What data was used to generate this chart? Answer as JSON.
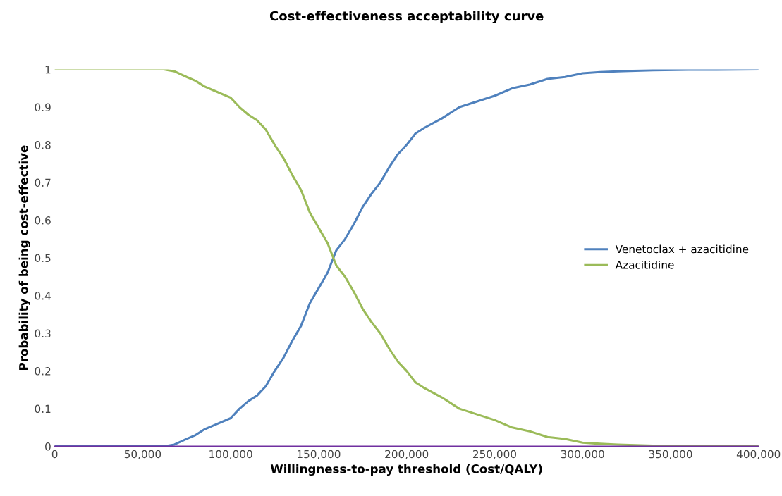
{
  "chart_data": {
    "type": "line",
    "title": "Cost-effectiveness acceptability curve",
    "xlabel": "Willingness-to-pay threshold (Cost/QALY)",
    "ylabel": "Probability of being cost-effective",
    "x": [
      0,
      62000,
      68000,
      75000,
      80000,
      85000,
      90000,
      100000,
      105000,
      110000,
      115000,
      120000,
      125000,
      130000,
      135000,
      140000,
      145000,
      150000,
      155000,
      160000,
      165000,
      170000,
      175000,
      180000,
      185000,
      190000,
      195000,
      200000,
      205000,
      210000,
      220000,
      230000,
      240000,
      250000,
      260000,
      270000,
      280000,
      290000,
      300000,
      310000,
      320000,
      340000,
      360000,
      400000
    ],
    "series": [
      {
        "name": "Venetoclax + azacitidine",
        "color": "#4f81bd",
        "values": [
          0,
          0,
          0.005,
          0.02,
          0.03,
          0.045,
          0.055,
          0.075,
          0.1,
          0.12,
          0.135,
          0.16,
          0.2,
          0.235,
          0.28,
          0.32,
          0.38,
          0.42,
          0.46,
          0.52,
          0.55,
          0.59,
          0.635,
          0.67,
          0.7,
          0.74,
          0.775,
          0.8,
          0.83,
          0.845,
          0.87,
          0.9,
          0.915,
          0.93,
          0.95,
          0.96,
          0.975,
          0.98,
          0.99,
          0.993,
          0.995,
          0.998,
          0.999,
          1
        ]
      },
      {
        "name": "Azacitidine",
        "color": "#9bbb59",
        "values": [
          1,
          1,
          0.995,
          0.98,
          0.97,
          0.955,
          0.945,
          0.925,
          0.9,
          0.88,
          0.865,
          0.84,
          0.8,
          0.765,
          0.72,
          0.68,
          0.62,
          0.58,
          0.54,
          0.48,
          0.45,
          0.41,
          0.365,
          0.33,
          0.3,
          0.26,
          0.225,
          0.2,
          0.17,
          0.155,
          0.13,
          0.1,
          0.085,
          0.07,
          0.05,
          0.04,
          0.025,
          0.02,
          0.01,
          0.007,
          0.005,
          0.002,
          0.001,
          0
        ]
      }
    ],
    "xlim": [
      0,
      400000
    ],
    "xticks": [
      0,
      {
        "value": 50000,
        "label": "50,000"
      },
      {
        "value": 100000,
        "label": "100,000"
      },
      {
        "value": 150000,
        "label": "150,000"
      },
      {
        "value": 200000,
        "label": "200,000"
      },
      {
        "value": 250000,
        "label": "250,000"
      },
      {
        "value": 300000,
        "label": "300,000"
      },
      {
        "value": 350000,
        "label": "350,000"
      },
      {
        "value": 400000,
        "label": "400,000"
      }
    ],
    "ylim": [
      0,
      1
    ],
    "yticks": [
      0,
      0.1,
      0.2,
      0.3,
      0.4,
      0.5,
      0.6,
      0.7,
      0.8,
      0.9,
      1
    ],
    "legend": "center right",
    "grid": false
  }
}
